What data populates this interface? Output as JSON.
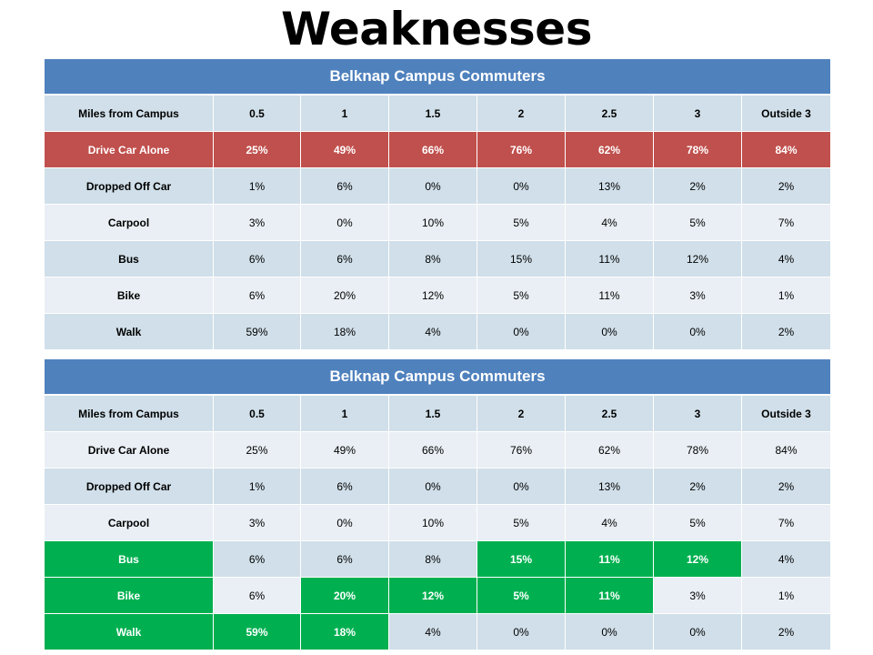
{
  "title": "Weaknesses",
  "colors": {
    "header": "#4f81bd",
    "highlight_red": "#c0504d",
    "highlight_green": "#00b050",
    "row_dark": "#d0dfe9",
    "row_light": "#e9eff4"
  },
  "table1": {
    "heading": "Belknap Campus Commuters",
    "columns": [
      "Miles from Campus",
      "0.5",
      "1",
      "1.5",
      "2",
      "2.5",
      "3",
      "Outside 3"
    ],
    "rows": [
      {
        "label": "Drive Car Alone",
        "values": [
          "25%",
          "49%",
          "66%",
          "76%",
          "62%",
          "78%",
          "84%"
        ],
        "highlight": "red"
      },
      {
        "label": "Dropped Off Car",
        "values": [
          "1%",
          "6%",
          "0%",
          "0%",
          "13%",
          "2%",
          "2%"
        ]
      },
      {
        "label": "Carpool",
        "values": [
          "3%",
          "0%",
          "10%",
          "5%",
          "4%",
          "5%",
          "7%"
        ]
      },
      {
        "label": "Bus",
        "values": [
          "6%",
          "6%",
          "8%",
          "15%",
          "11%",
          "12%",
          "4%"
        ]
      },
      {
        "label": "Bike",
        "values": [
          "6%",
          "20%",
          "12%",
          "5%",
          "11%",
          "3%",
          "1%"
        ]
      },
      {
        "label": "Walk",
        "values": [
          "59%",
          "18%",
          "4%",
          "0%",
          "0%",
          "0%",
          "2%"
        ]
      }
    ]
  },
  "table2": {
    "heading": "Belknap Campus Commuters",
    "columns": [
      "Miles from Campus",
      "0.5",
      "1",
      "1.5",
      "2",
      "2.5",
      "3",
      "Outside 3"
    ],
    "rows": [
      {
        "label": "Drive Car Alone",
        "values": [
          "25%",
          "49%",
          "66%",
          "76%",
          "62%",
          "78%",
          "84%"
        ]
      },
      {
        "label": "Dropped Off Car",
        "values": [
          "1%",
          "6%",
          "0%",
          "0%",
          "13%",
          "2%",
          "2%"
        ]
      },
      {
        "label": "Carpool",
        "values": [
          "3%",
          "0%",
          "10%",
          "5%",
          "4%",
          "5%",
          "7%"
        ]
      },
      {
        "label": "Bus",
        "values": [
          "6%",
          "6%",
          "8%",
          "15%",
          "11%",
          "12%",
          "4%"
        ],
        "green_cells": [
          0,
          4,
          5,
          6
        ]
      },
      {
        "label": "Bike",
        "values": [
          "6%",
          "20%",
          "12%",
          "5%",
          "11%",
          "3%",
          "1%"
        ],
        "green_cells": [
          0,
          2,
          3,
          4,
          5
        ]
      },
      {
        "label": "Walk",
        "values": [
          "59%",
          "18%",
          "4%",
          "0%",
          "0%",
          "0%",
          "2%"
        ],
        "green_cells": [
          0,
          1,
          2
        ]
      }
    ]
  }
}
